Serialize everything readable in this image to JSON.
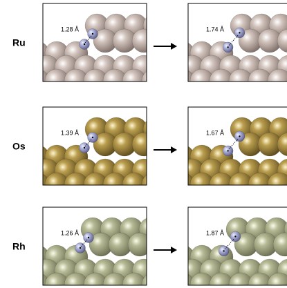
{
  "rows": [
    {
      "label": "Ru",
      "before": "1.28 Å",
      "after": "1.74 Å"
    },
    {
      "label": "Os",
      "before": "1.39 Å",
      "after": "1.67 Å"
    },
    {
      "label": "Rh",
      "before": "1.26 Å",
      "after": "1.87 Å"
    }
  ]
}
